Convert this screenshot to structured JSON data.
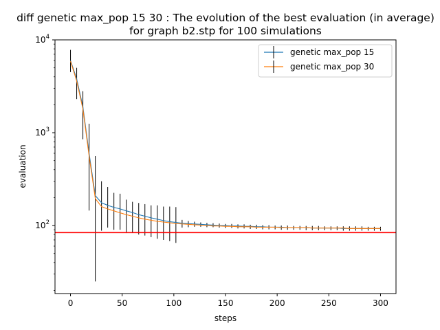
{
  "chart_data": {
    "type": "line",
    "title_line1": "diff genetic max_pop 15 30 : The evolution of the best evaluation (in average)",
    "title_line2": "for graph b2.stp for 100 simulations",
    "xlabel": "steps",
    "ylabel": "evaluation",
    "xlim": [
      -15,
      315
    ],
    "ylim": [
      18.5,
      10000
    ],
    "yscale": "log",
    "xticks": [
      0,
      50,
      100,
      150,
      200,
      250,
      300
    ],
    "yticks": [
      {
        "value": 100,
        "base": "10",
        "exp": "2"
      },
      {
        "value": 1000,
        "base": "10",
        "exp": "3"
      },
      {
        "value": 10000,
        "base": "10",
        "exp": "4"
      }
    ],
    "legend_position": "top-right",
    "reference_line": {
      "y": 84,
      "color": "#ff0000"
    },
    "series": [
      {
        "name": "genetic max_pop 15",
        "color": "#1f77b4",
        "x": [
          0,
          6,
          12,
          18,
          24,
          30,
          36,
          42,
          48,
          54,
          60,
          66,
          72,
          78,
          84,
          90,
          96,
          102,
          108,
          114,
          120,
          126,
          132,
          138,
          144,
          150,
          156,
          162,
          168,
          174,
          180,
          186,
          192,
          198,
          204,
          210,
          216,
          222,
          228,
          234,
          240,
          246,
          252,
          258,
          264,
          270,
          276,
          282,
          288,
          294,
          300
        ],
        "y": [
          6000,
          3800,
          1900,
          600,
          210,
          176,
          165,
          157,
          151,
          144,
          138,
          131,
          126,
          121,
          117,
          113,
          110,
          108,
          106,
          105,
          104,
          103,
          102,
          101,
          100,
          100,
          99,
          99,
          98,
          98,
          97,
          97,
          96,
          96,
          96,
          95,
          95,
          95,
          95,
          94,
          94,
          94,
          94,
          94,
          93,
          93,
          93,
          93,
          93,
          93,
          93
        ],
        "err_low": [
          4500,
          2300,
          850,
          145,
          25,
          88,
          95,
          90,
          90,
          85,
          85,
          80,
          78,
          75,
          72,
          70,
          68,
          65,
          95,
          96,
          97,
          97,
          96,
          96,
          95,
          94,
          94,
          93,
          93,
          92,
          92,
          91,
          91,
          91,
          90,
          90,
          90,
          90,
          89,
          89,
          89,
          89,
          89,
          89,
          88,
          88,
          88,
          88,
          88,
          88,
          88
        ],
        "err_high": [
          7800,
          5000,
          2800,
          1250,
          560,
          300,
          260,
          225,
          220,
          190,
          180,
          175,
          170,
          165,
          165,
          160,
          160,
          158,
          115,
          112,
          110,
          108,
          107,
          106,
          105,
          104,
          104,
          103,
          103,
          102,
          102,
          101,
          101,
          100,
          100,
          100,
          99,
          99,
          99,
          99,
          99,
          98,
          98,
          98,
          98,
          98,
          98,
          98,
          97,
          97,
          97
        ]
      },
      {
        "name": "genetic max_pop 30",
        "color": "#ff7f0e",
        "x": [
          0,
          6,
          12,
          18,
          24,
          30,
          36,
          42,
          48,
          54,
          60,
          66,
          72,
          78,
          84,
          90,
          96,
          102,
          108,
          114,
          120,
          126,
          132,
          138,
          144,
          150,
          156,
          162,
          168,
          174,
          180,
          186,
          192,
          198,
          204,
          210,
          216,
          222,
          228,
          234,
          240,
          246,
          252,
          258,
          264,
          270,
          276,
          282,
          288,
          294,
          300
        ],
        "y": [
          5900,
          3600,
          1800,
          560,
          195,
          160,
          151,
          144,
          137,
          131,
          126,
          121,
          117,
          114,
          111,
          109,
          107,
          105,
          104,
          103,
          102,
          101,
          100,
          99,
          99,
          98,
          98,
          97,
          97,
          97,
          96,
          96,
          96,
          96,
          95,
          95,
          95,
          95,
          95,
          94,
          94,
          94,
          94,
          94,
          94,
          93,
          93,
          93,
          93,
          93,
          93
        ]
      }
    ]
  }
}
